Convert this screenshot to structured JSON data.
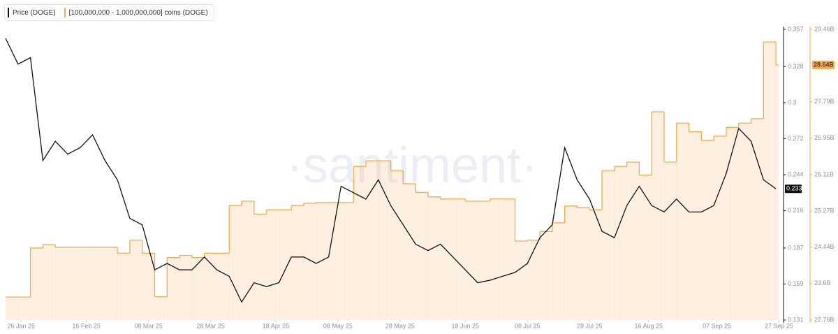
{
  "chart_data": {
    "type": "line",
    "watermark": "·santiment·",
    "x": [
      "2025-01-21",
      "2025-01-25",
      "2025-01-29",
      "2025-02-02",
      "2025-02-06",
      "2025-02-10",
      "2025-02-14",
      "2025-02-18",
      "2025-02-22",
      "2025-02-26",
      "2025-03-02",
      "2025-03-06",
      "2025-03-10",
      "2025-03-14",
      "2025-03-18",
      "2025-03-22",
      "2025-03-26",
      "2025-03-30",
      "2025-04-03",
      "2025-04-07",
      "2025-04-11",
      "2025-04-15",
      "2025-04-19",
      "2025-04-23",
      "2025-04-27",
      "2025-05-01",
      "2025-05-05",
      "2025-05-09",
      "2025-05-13",
      "2025-05-17",
      "2025-05-21",
      "2025-05-25",
      "2025-05-29",
      "2025-06-02",
      "2025-06-06",
      "2025-06-10",
      "2025-06-14",
      "2025-06-18",
      "2025-06-22",
      "2025-06-26",
      "2025-06-30",
      "2025-07-04",
      "2025-07-08",
      "2025-07-12",
      "2025-07-16",
      "2025-07-20",
      "2025-07-24",
      "2025-07-28",
      "2025-08-01",
      "2025-08-05",
      "2025-08-09",
      "2025-08-13",
      "2025-08-17",
      "2025-08-21",
      "2025-08-25",
      "2025-08-29",
      "2025-09-02",
      "2025-09-06",
      "2025-09-10",
      "2025-09-14",
      "2025-09-18",
      "2025-09-22",
      "2025-09-26"
    ],
    "xlim": [
      "2025-01-21",
      "2025-09-28"
    ],
    "xticks": [
      {
        "value": "2025-01-26",
        "label": "26 Jan 25"
      },
      {
        "value": "2025-02-16",
        "label": "16 Feb 25"
      },
      {
        "value": "2025-03-08",
        "label": "08 Mar 25"
      },
      {
        "value": "2025-03-28",
        "label": "28 Mar 25"
      },
      {
        "value": "2025-04-18",
        "label": "18 Apr 25"
      },
      {
        "value": "2025-05-08",
        "label": "08 May 25"
      },
      {
        "value": "2025-05-28",
        "label": "28 May 25"
      },
      {
        "value": "2025-06-18",
        "label": "18 Jun 25"
      },
      {
        "value": "2025-07-08",
        "label": "08 Jul 25"
      },
      {
        "value": "2025-07-28",
        "label": "28 Jul 25"
      },
      {
        "value": "2025-08-16",
        "label": "16 Aug 25"
      },
      {
        "value": "2025-09-07",
        "label": "07 Sep 25"
      },
      {
        "value": "2025-09-27",
        "label": "27 Sep 25"
      }
    ],
    "ylim": [
      0.131,
      0.357
    ],
    "yticks": [
      0.131,
      0.159,
      0.187,
      0.216,
      0.244,
      0.272,
      {
        "value": 0.3,
        "label": "0.3"
      },
      0.328,
      0.357
    ],
    "y2lim": [
      22.76,
      29.46
    ],
    "y2ticks": [
      {
        "value": 22.76,
        "label": "22.76B"
      },
      {
        "value": 23.6,
        "label": "23.6B"
      },
      {
        "value": 24.44,
        "label": "24.44B"
      },
      {
        "value": 25.27,
        "label": "25.27B"
      },
      {
        "value": 26.11,
        "label": "26.11B"
      },
      {
        "value": 26.95,
        "label": "26.95B"
      },
      {
        "value": 27.79,
        "label": "27.79B"
      },
      {
        "value": 29.46,
        "label": "29.46B"
      }
    ],
    "series": [
      {
        "name": "Price (DOGE)",
        "color": "#111111",
        "current_label": "0.233",
        "values": [
          0.35,
          0.33,
          0.335,
          0.255,
          0.27,
          0.26,
          0.265,
          0.275,
          0.255,
          0.24,
          0.21,
          0.205,
          0.17,
          0.175,
          0.17,
          0.17,
          0.18,
          0.17,
          0.165,
          0.145,
          0.16,
          0.157,
          0.16,
          0.18,
          0.18,
          0.175,
          0.18,
          0.235,
          0.23,
          0.225,
          0.24,
          0.22,
          0.205,
          0.19,
          0.185,
          0.19,
          0.18,
          0.17,
          0.16,
          0.162,
          0.165,
          0.168,
          0.175,
          0.195,
          0.205,
          0.265,
          0.24,
          0.225,
          0.2,
          0.195,
          0.22,
          0.235,
          0.22,
          0.215,
          0.225,
          0.215,
          0.215,
          0.22,
          0.245,
          0.28,
          0.27,
          0.24,
          0.233
        ]
      },
      {
        "name": "[100,000,000 - 1,000,000,000] coins (DOGE)",
        "color": "#f5a94e",
        "axis": "y2",
        "current_label": "28.64B",
        "values": [
          23.29,
          23.29,
          24.42,
          24.5,
          24.44,
          24.44,
          24.44,
          24.44,
          24.44,
          24.3,
          24.6,
          24.3,
          23.3,
          24.2,
          24.25,
          24.2,
          24.3,
          24.3,
          25.4,
          25.5,
          25.2,
          25.3,
          25.3,
          25.4,
          25.45,
          25.47,
          25.47,
          25.47,
          26.3,
          26.43,
          26.43,
          26.2,
          25.9,
          25.7,
          25.6,
          25.55,
          25.55,
          25.5,
          25.5,
          25.55,
          25.55,
          24.58,
          24.6,
          24.8,
          25.0,
          25.39,
          25.35,
          25.3,
          26.2,
          26.3,
          26.4,
          26.1,
          27.56,
          26.4,
          27.3,
          27.1,
          26.9,
          27.0,
          27.2,
          27.3,
          27.4,
          29.17,
          28.64
        ]
      }
    ]
  }
}
